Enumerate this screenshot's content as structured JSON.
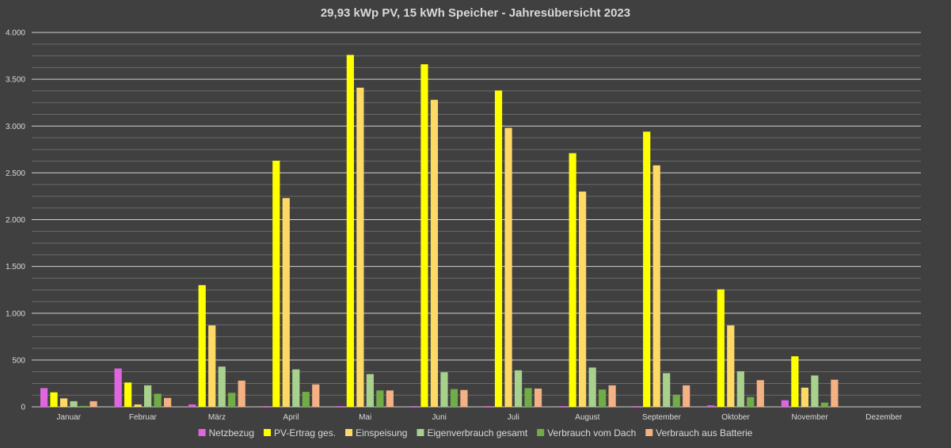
{
  "chart_data": {
    "type": "bar",
    "title": "29,93 kWp PV, 15 kWh Speicher - Jahresübersicht 2023",
    "categories": [
      "Januar",
      "Februar",
      "März",
      "April",
      "Mai",
      "Juni",
      "Juli",
      "August",
      "September",
      "Oktober",
      "November",
      "Dezember"
    ],
    "ylim": [
      0,
      4000
    ],
    "yticks": [
      0,
      500,
      1000,
      1500,
      2000,
      2500,
      3000,
      3500,
      4000
    ],
    "ytick_labels": [
      "0",
      "500",
      "1.000",
      "1.500",
      "2.000",
      "2.500",
      "3.000",
      "3.500",
      "4.000"
    ],
    "grid": true,
    "legend_position": "bottom",
    "series": [
      {
        "name": "Netzbezug",
        "color": "#e066e0",
        "values": [
          200,
          410,
          25,
          8,
          8,
          8,
          8,
          8,
          8,
          15,
          70,
          0
        ]
      },
      {
        "name": "PV-Ertrag ges.",
        "color": "#ffff00",
        "values": [
          155,
          260,
          1300,
          2630,
          3760,
          3660,
          3380,
          2710,
          2940,
          1255,
          540,
          0
        ]
      },
      {
        "name": "Einspeisung",
        "color": "#ffd966",
        "values": [
          90,
          25,
          870,
          2230,
          3410,
          3280,
          2980,
          2300,
          2580,
          870,
          205,
          0
        ]
      },
      {
        "name": "Eigenverbrauch gesamt",
        "color": "#a9d18e",
        "values": [
          60,
          230,
          430,
          400,
          350,
          370,
          390,
          420,
          360,
          380,
          335,
          0
        ]
      },
      {
        "name": "Verbrauch vom Dach",
        "color": "#70ad47",
        "values": [
          10,
          140,
          150,
          160,
          175,
          190,
          200,
          185,
          130,
          105,
          45,
          0
        ]
      },
      {
        "name": "Verbrauch aus Batterie",
        "color": "#f4b183",
        "values": [
          60,
          95,
          280,
          240,
          175,
          180,
          195,
          230,
          230,
          285,
          290,
          0
        ]
      }
    ]
  }
}
